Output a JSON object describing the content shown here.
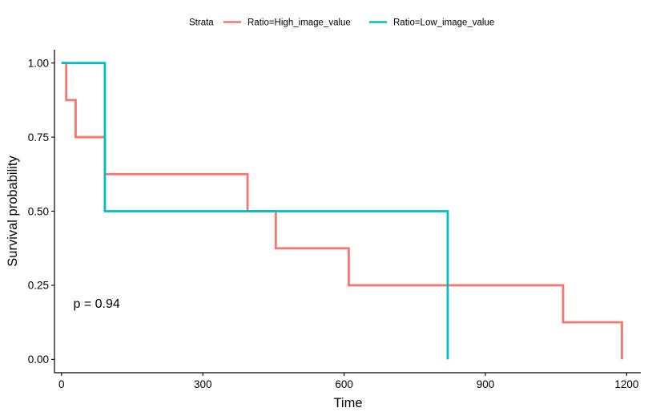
{
  "chart_data": {
    "type": "line",
    "subtype": "kaplan-meier step",
    "xlabel": "Time",
    "ylabel": "Survival probability",
    "xlim": [
      -15,
      1230
    ],
    "ylim": [
      -0.045,
      1.045
    ],
    "x_ticks": [
      0,
      300,
      600,
      900,
      1200
    ],
    "x_tick_labels": [
      "0",
      "300",
      "600",
      "900",
      "1200"
    ],
    "y_ticks": [
      0,
      0.25,
      0.5,
      0.75,
      1.0
    ],
    "y_tick_labels": [
      "0.00",
      "0.25",
      "0.50",
      "0.75",
      "1.00"
    ],
    "grid": false,
    "legend": {
      "position": "top",
      "title": "Strata",
      "entries": [
        "Ratio=High_image_value",
        "Ratio=Low_image_value"
      ]
    },
    "annotation": {
      "text": "p = 0.94",
      "x": 25,
      "y": 0.19
    },
    "series": [
      {
        "name": "Ratio=High_image_value",
        "color": "#F8766D",
        "x": [
          0,
          10,
          30,
          92,
          395,
          455,
          610,
          1065,
          1190
        ],
        "y": [
          1.0,
          0.875,
          0.75,
          0.625,
          0.5,
          0.375,
          0.25,
          0.125,
          0.0
        ]
      },
      {
        "name": "Ratio=Low_image_value",
        "color": "#00BFC4",
        "x": [
          0,
          92,
          820
        ],
        "y": [
          1.0,
          0.5,
          0.0
        ]
      }
    ]
  }
}
